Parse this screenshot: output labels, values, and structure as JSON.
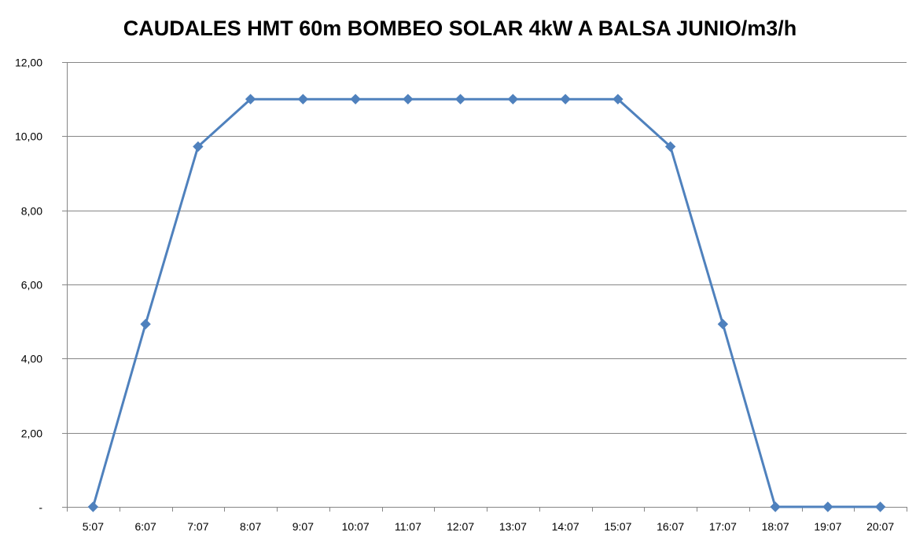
{
  "chart_data": {
    "type": "line",
    "title": "CAUDALES HMT 60m BOMBEO SOLAR 4kW A BALSA JUNIO/m3/h",
    "categories": [
      "5:07",
      "6:07",
      "7:07",
      "8:07",
      "9:07",
      "10:07",
      "11:07",
      "12:07",
      "13:07",
      "14:07",
      "15:07",
      "16:07",
      "17:07",
      "18:07",
      "19:07",
      "20:07"
    ],
    "series": [
      {
        "values": [
          0,
          4.93,
          9.72,
          11.0,
          11.0,
          11.0,
          11.0,
          11.0,
          11.0,
          11.0,
          11.0,
          9.72,
          4.93,
          0,
          0,
          0
        ],
        "color": "#4f81bd",
        "marker": "diamond"
      }
    ],
    "yticks": [
      {
        "value": 0,
        "label": "-"
      },
      {
        "value": 2,
        "label": "2,00"
      },
      {
        "value": 4,
        "label": "4,00"
      },
      {
        "value": 6,
        "label": "6,00"
      },
      {
        "value": 8,
        "label": "8,00"
      },
      {
        "value": 10,
        "label": "10,00"
      },
      {
        "value": 12,
        "label": "12,00"
      }
    ],
    "ylim": [
      0,
      12
    ],
    "xlabel": "",
    "ylabel": "",
    "grid": true,
    "legend": "none",
    "colors": {
      "gridline": "#868686",
      "axis": "#868686"
    }
  }
}
